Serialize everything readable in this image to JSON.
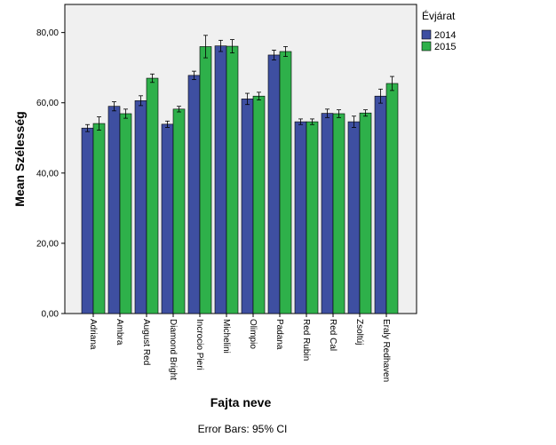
{
  "chart_data": {
    "type": "bar",
    "xlabel": "Fajta neve",
    "ylabel": "Mean Szélesség",
    "ylim": [
      0,
      88
    ],
    "y_ticks": [
      0,
      20,
      40,
      60,
      80
    ],
    "y_tick_labels": [
      "0,00",
      "20,00",
      "40,00",
      "60,00",
      "80,00"
    ],
    "legend_title": "Évjárat",
    "legend_position": "top-right, outside plot",
    "footnote": "Error Bars: 95% CI",
    "grid": false,
    "plot_background": "#f0f0f0",
    "categories": [
      "Adriana",
      "Ambra",
      "August Red",
      "Diamond Bright",
      "Incrocio Pieri",
      "Michelini",
      "Olimpio",
      "Padana",
      "Red Rubin",
      "Red Cal",
      "Zsoltúj",
      "Eraly Redhaven"
    ],
    "series": [
      {
        "name": "2014",
        "color": "#3e4fa1",
        "values": [
          52.8,
          59.0,
          60.6,
          53.9,
          67.8,
          76.2,
          61.1,
          73.6,
          54.6,
          57.0,
          54.6,
          61.9
        ],
        "ci_low": [
          51.8,
          57.7,
          59.2,
          53.0,
          66.6,
          74.6,
          59.5,
          72.2,
          53.8,
          55.8,
          53.0,
          59.9
        ],
        "ci_high": [
          53.8,
          60.3,
          62.0,
          54.8,
          69.0,
          77.8,
          62.7,
          75.0,
          55.4,
          58.2,
          56.2,
          63.9
        ]
      },
      {
        "name": "2015",
        "color": "#2eb04a",
        "values": [
          54.1,
          56.9,
          67.0,
          58.2,
          76.0,
          76.1,
          61.9,
          74.6,
          54.6,
          56.9,
          57.1,
          65.5
        ],
        "ci_low": [
          52.2,
          55.6,
          65.8,
          57.4,
          72.8,
          74.2,
          60.8,
          73.2,
          53.8,
          55.8,
          56.2,
          63.5
        ],
        "ci_high": [
          56.0,
          58.2,
          68.2,
          59.0,
          79.2,
          78.0,
          63.0,
          76.0,
          55.4,
          58.0,
          58.0,
          67.5
        ]
      }
    ]
  }
}
